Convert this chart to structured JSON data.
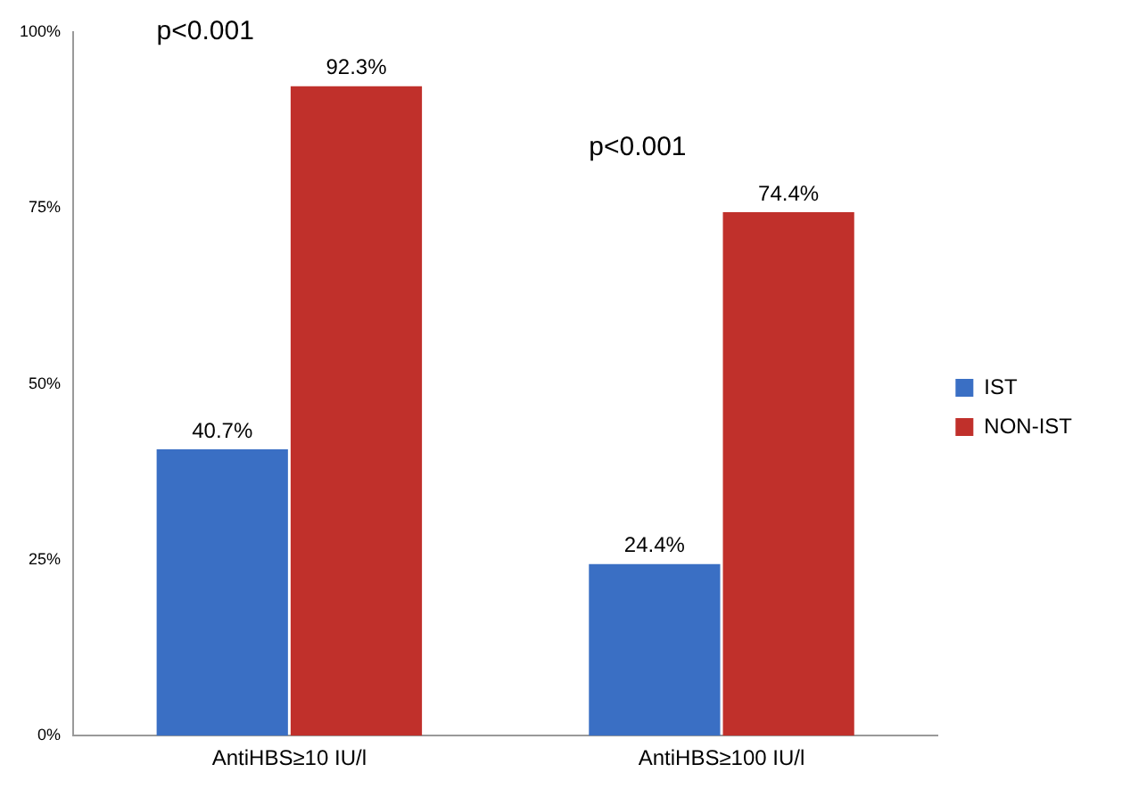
{
  "chart_data": {
    "type": "bar",
    "categories": [
      "AntiHBS≥10 IU/l",
      "AntiHBS≥100 IU/l"
    ],
    "series": [
      {
        "name": "IST",
        "color": "#3a6fc4",
        "values": [
          40.7,
          24.4
        ],
        "value_labels": [
          "40.7%",
          "24.4%"
        ]
      },
      {
        "name": "NON-IST",
        "color": "#c0302b",
        "values": [
          92.3,
          74.4
        ],
        "value_labels": [
          "92.3%",
          "74.4%"
        ]
      }
    ],
    "ylim": [
      0,
      100
    ],
    "yticks": [
      {
        "value": 0,
        "label": "0%"
      },
      {
        "value": 25,
        "label": "25%"
      },
      {
        "value": 50,
        "label": "50%"
      },
      {
        "value": 75,
        "label": "75%"
      },
      {
        "value": 100,
        "label": "100%"
      }
    ],
    "grid": false,
    "legend": "right",
    "annotations": [
      "p<0.001",
      "p<0.001"
    ]
  }
}
